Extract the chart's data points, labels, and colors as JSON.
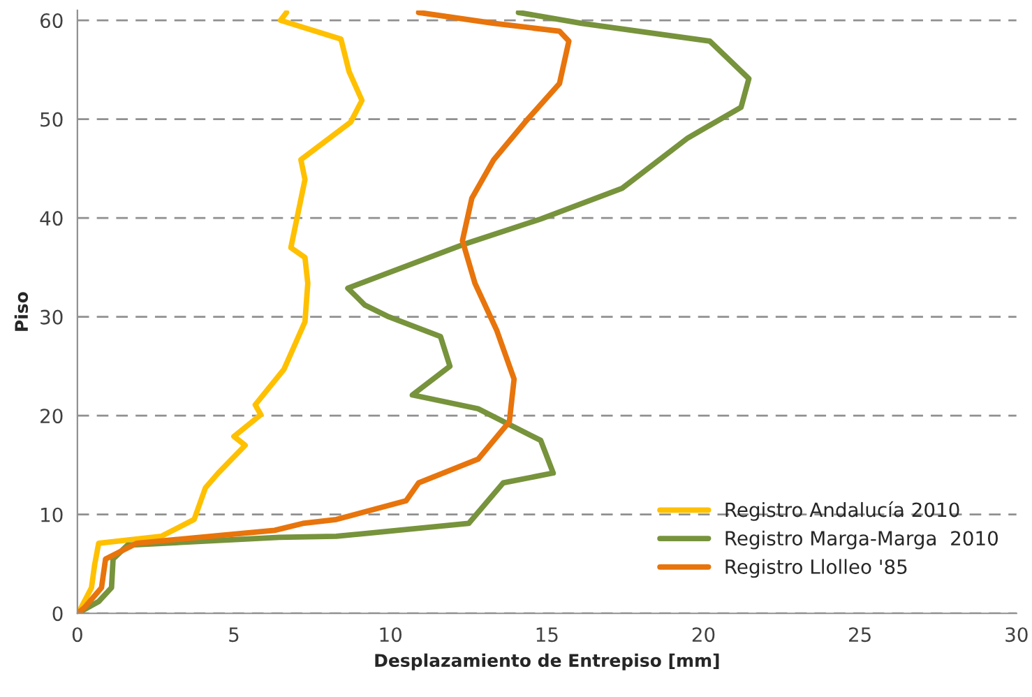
{
  "chart_data": {
    "type": "line",
    "xlabel": "Desplazamiento de Entrepiso [mm]",
    "ylabel": "Piso",
    "xlim": [
      0,
      30
    ],
    "xticks": [
      0,
      5,
      10,
      15,
      20,
      25,
      30
    ],
    "ylim": [
      0,
      61
    ],
    "yticks": [
      0,
      10,
      20,
      30,
      40,
      50,
      60
    ],
    "grid": "y",
    "legend": "bottom right",
    "line_style": "solid",
    "marker": "none",
    "series": [
      {
        "name": "Registro Andalucía 2010",
        "color": "#ffc000",
        "x": [
          0,
          0.09,
          0.45,
          0.55,
          0.68,
          2.68,
          3.73,
          4.09,
          4.5,
          5.36,
          5.0,
          5.86,
          5.68,
          6.6,
          7.27,
          7.36,
          7.27,
          6.82,
          7.27,
          7.14,
          8.73,
          9.09,
          8.68,
          8.42,
          6.49,
          6.68
        ],
        "values": [
          0,
          0.4,
          2.6,
          4.9,
          7.1,
          7.8,
          9.5,
          12.7,
          14.2,
          17,
          17.9,
          20.1,
          21.1,
          24.7,
          29.5,
          33.4,
          36,
          37,
          43.9,
          45.9,
          49.7,
          51.9,
          54.8,
          58.1,
          60,
          60.8
        ]
      },
      {
        "name": "Registro Marga-Marga  2010",
        "color": "#77933c",
        "x": [
          0,
          0.68,
          1.09,
          1.14,
          1.6,
          6.45,
          8.27,
          12.5,
          13.6,
          15.2,
          14.8,
          12.8,
          10.7,
          11.9,
          11.6,
          9.95,
          9.18,
          8.64,
          12.4,
          14.8,
          17.4,
          19.5,
          21.2,
          21.45,
          20.2,
          16.1,
          14.09
        ],
        "values": [
          0,
          1.2,
          2.6,
          5.5,
          6.9,
          7.7,
          7.8,
          9.1,
          13.2,
          14.2,
          17.5,
          20.7,
          22.1,
          25,
          28,
          30,
          31.2,
          32.9,
          37.4,
          39.9,
          43,
          48.1,
          51.2,
          54.1,
          57.9,
          59.7,
          60.8
        ]
      },
      {
        "name": "Registro Llolleo '85",
        "color": "#e8740c",
        "x": [
          0,
          0.23,
          0.77,
          0.9,
          1.9,
          6.3,
          7.2,
          8.27,
          10.5,
          10.9,
          12.8,
          13.8,
          13.95,
          13.4,
          12.7,
          12.3,
          12.6,
          13.3,
          14.3,
          15.4,
          15.7,
          15.4,
          13.3,
          10.9
        ],
        "values": [
          0,
          0.6,
          2.6,
          5.5,
          7.1,
          8.4,
          9.1,
          9.5,
          11.4,
          13.2,
          15.6,
          19.4,
          23.7,
          28.6,
          33.4,
          37.7,
          42,
          45.9,
          49.7,
          53.6,
          57.9,
          58.9,
          59.7,
          60.8
        ]
      }
    ]
  }
}
